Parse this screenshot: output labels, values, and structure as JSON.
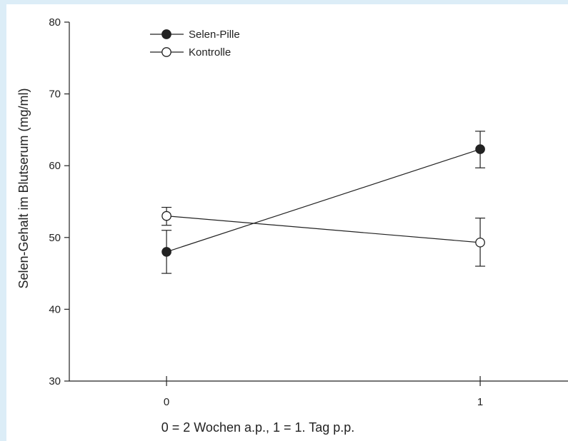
{
  "chart_data": {
    "type": "line",
    "title": "",
    "xlabel": "0 = 2 Wochen a.p., 1 = 1. Tag p.p.",
    "ylabel": "Selen-Gehalt im Blutserum (mg/ml)",
    "x": [
      0,
      1
    ],
    "x_tick_labels": [
      "0",
      "1"
    ],
    "xlim": [
      -0.31,
      1.28
    ],
    "ylim": [
      30,
      80
    ],
    "y_ticks": [
      30,
      40,
      50,
      60,
      70,
      80
    ],
    "grid": false,
    "legend_position": "top-left",
    "series": [
      {
        "name": "Selen-Pille",
        "marker": "filled-circle",
        "color": "#222222",
        "values": [
          48,
          62.3
        ],
        "error_low": [
          45,
          59.7
        ],
        "error_high": [
          51,
          64.8
        ]
      },
      {
        "name": "Kontrolle",
        "marker": "open-circle",
        "color": "#222222",
        "values": [
          53,
          49.3
        ],
        "error_low": [
          51.7,
          46
        ],
        "error_high": [
          54.2,
          52.7
        ]
      }
    ]
  },
  "colors": {
    "frame": "#dcedf7",
    "ink": "#222222",
    "background": "#ffffff"
  }
}
